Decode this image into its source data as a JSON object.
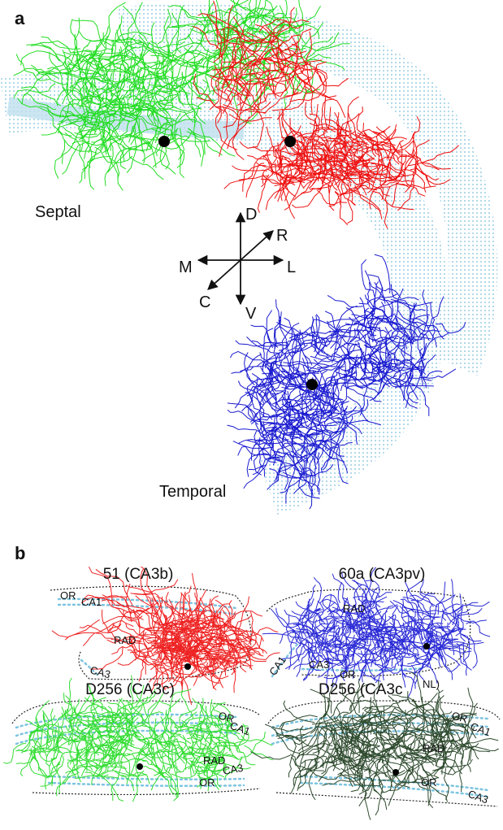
{
  "panel_a": {
    "label": "a",
    "regions": {
      "septal": "Septal",
      "temporal": "Temporal"
    },
    "axes": {
      "dorsal": "D",
      "rostral": "R",
      "medial": "M",
      "lateral": "L",
      "caudal": "C",
      "ventral": "V"
    }
  },
  "panel_b": {
    "label": "b",
    "cells": [
      {
        "title": "51 (CA3b)",
        "layers": {
          "or": "OR",
          "ca1": "CA1",
          "rad": "RAD",
          "ca3": "CA3"
        }
      },
      {
        "title": "60a (CA3pv)",
        "layers": {
          "ca1": "CA1",
          "rad": "RAD",
          "ca3": "CA3",
          "or": "OR"
        }
      },
      {
        "title": "D256 (CA3c)",
        "layers": {
          "or": "OR",
          "ca1": "CA1",
          "rad": "RAD",
          "or_lower": "OR",
          "ca3": "CA3"
        }
      },
      {
        "title": "D256 (CA3c",
        "title_superscript": "NL)",
        "layers": {
          "or": "OR",
          "ca1": "CA1",
          "rad": "RAD",
          "or_lower": "OR",
          "ca3": "CA3"
        }
      }
    ]
  }
}
